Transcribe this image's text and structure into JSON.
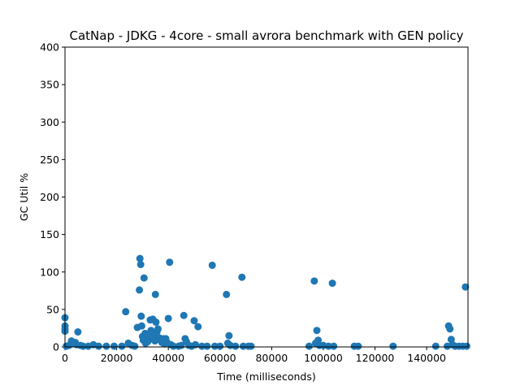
{
  "chart_data": {
    "type": "scatter",
    "title": "CatNap - JDKG - 4core -  small avrora benchmark with GEN policy",
    "xlabel": "Time (milliseconds)",
    "ylabel": "GC Util %",
    "xlim": [
      0,
      156000
    ],
    "ylim": [
      0,
      400
    ],
    "xticks": [
      0,
      20000,
      40000,
      60000,
      80000,
      100000,
      120000,
      140000
    ],
    "yticks": [
      0,
      50,
      100,
      150,
      200,
      250,
      300,
      350,
      400
    ],
    "grid": false,
    "marker_color": "#1f77b4",
    "series": [
      {
        "points": [
          [
            0,
            39
          ],
          [
            0,
            28
          ],
          [
            0,
            24
          ],
          [
            0,
            21
          ],
          [
            500,
            1
          ],
          [
            1500,
            2
          ],
          [
            2500,
            8
          ],
          [
            3000,
            5
          ],
          [
            4000,
            6
          ],
          [
            4500,
            3
          ],
          [
            5000,
            20
          ],
          [
            6000,
            2
          ],
          [
            7000,
            1
          ],
          [
            9000,
            1
          ],
          [
            11000,
            3
          ],
          [
            13000,
            1
          ],
          [
            16000,
            1
          ],
          [
            19000,
            1
          ],
          [
            22000,
            1
          ],
          [
            23500,
            47
          ],
          [
            24500,
            5
          ],
          [
            26000,
            2
          ],
          [
            27000,
            1
          ],
          [
            28000,
            26
          ],
          [
            28800,
            76
          ],
          [
            29000,
            118
          ],
          [
            29300,
            110
          ],
          [
            29500,
            41
          ],
          [
            29700,
            28
          ],
          [
            30000,
            14
          ],
          [
            30300,
            9
          ],
          [
            30600,
            92
          ],
          [
            31000,
            18
          ],
          [
            31200,
            5
          ],
          [
            31500,
            12
          ],
          [
            32000,
            7
          ],
          [
            32500,
            16
          ],
          [
            33000,
            36
          ],
          [
            33300,
            22
          ],
          [
            33600,
            11
          ],
          [
            34000,
            37
          ],
          [
            34300,
            14
          ],
          [
            34800,
            8
          ],
          [
            35000,
            70
          ],
          [
            35200,
            33
          ],
          [
            35600,
            20
          ],
          [
            36000,
            24
          ],
          [
            36500,
            12
          ],
          [
            37000,
            9
          ],
          [
            37500,
            6
          ],
          [
            38000,
            11
          ],
          [
            38500,
            4
          ],
          [
            39000,
            11
          ],
          [
            39500,
            6
          ],
          [
            40000,
            38
          ],
          [
            40500,
            113
          ],
          [
            41000,
            3
          ],
          [
            42000,
            1
          ],
          [
            44000,
            1
          ],
          [
            45000,
            2
          ],
          [
            46000,
            42
          ],
          [
            46500,
            11
          ],
          [
            47000,
            7
          ],
          [
            48000,
            2
          ],
          [
            49000,
            1
          ],
          [
            50000,
            35
          ],
          [
            50500,
            3
          ],
          [
            51500,
            27
          ],
          [
            53000,
            1
          ],
          [
            55000,
            1
          ],
          [
            57000,
            109
          ],
          [
            58000,
            1
          ],
          [
            60000,
            1
          ],
          [
            62500,
            70
          ],
          [
            63000,
            5
          ],
          [
            63500,
            15
          ],
          [
            64000,
            2
          ],
          [
            66000,
            1
          ],
          [
            68500,
            93
          ],
          [
            69000,
            1
          ],
          [
            71000,
            1
          ],
          [
            72000,
            1
          ],
          [
            94500,
            1
          ],
          [
            96500,
            88
          ],
          [
            97000,
            5
          ],
          [
            97500,
            22
          ],
          [
            98000,
            9
          ],
          [
            98500,
            2
          ],
          [
            100000,
            2
          ],
          [
            102000,
            1
          ],
          [
            103500,
            85
          ],
          [
            104000,
            1
          ],
          [
            112000,
            1
          ],
          [
            113500,
            1
          ],
          [
            127000,
            1
          ],
          [
            143500,
            1
          ],
          [
            148000,
            1
          ],
          [
            148500,
            28
          ],
          [
            149000,
            24
          ],
          [
            149500,
            10
          ],
          [
            150000,
            3
          ],
          [
            151000,
            1
          ],
          [
            152500,
            1
          ],
          [
            154000,
            1
          ],
          [
            155000,
            80
          ],
          [
            155500,
            1
          ]
        ]
      }
    ]
  }
}
